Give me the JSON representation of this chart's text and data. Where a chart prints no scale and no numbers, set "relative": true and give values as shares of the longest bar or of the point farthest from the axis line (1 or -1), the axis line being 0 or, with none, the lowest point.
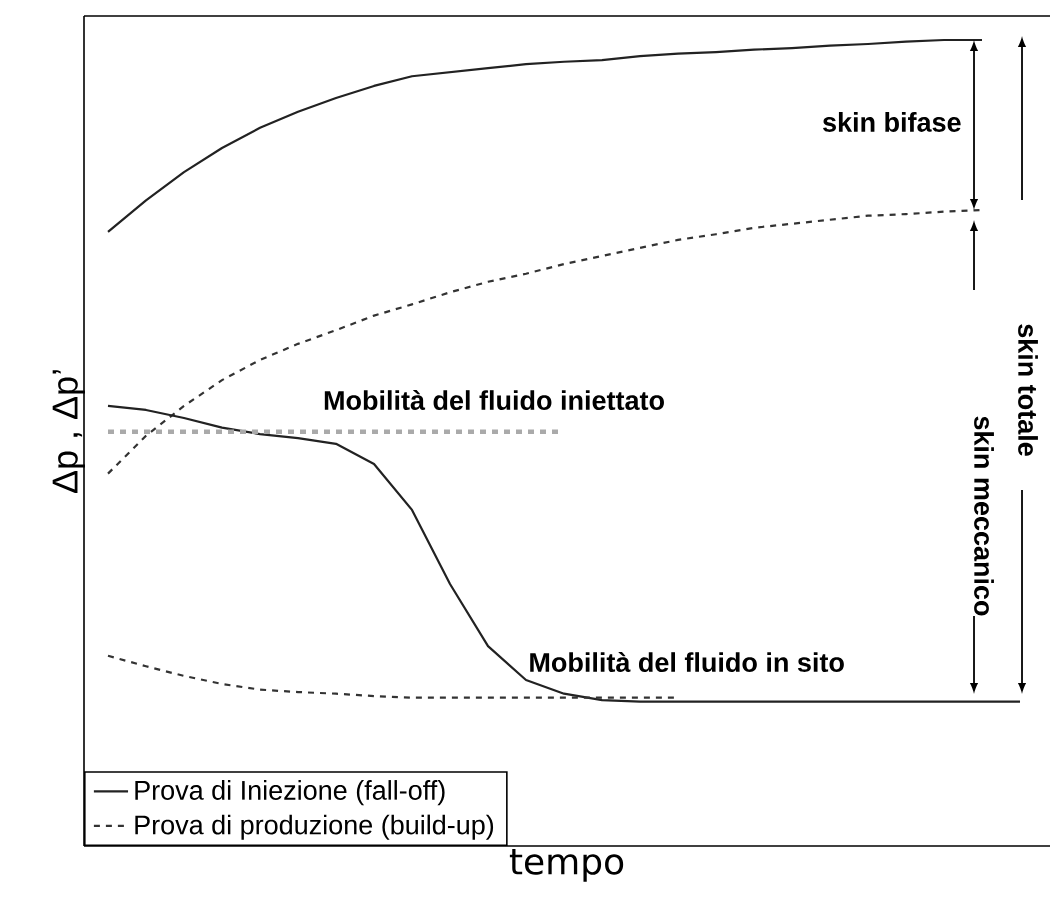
{
  "chart_data": {
    "type": "line",
    "relative": true,
    "xlabel": "tempo",
    "ylabel": "Δp , Δp’",
    "legend": "bottom left",
    "marker": "none",
    "categories": [
      null,
      null,
      null,
      null,
      null,
      null,
      null,
      null,
      null,
      null,
      null,
      null,
      null,
      null,
      null,
      null,
      null,
      null,
      null,
      null,
      null,
      null,
      null,
      null,
      null
    ],
    "series": [
      {
        "name": "Prova di Iniezione (fall-off)",
        "color": "#222222",
        "line_style": "solid",
        "values": [
          0.762,
          0.801,
          0.836,
          0.866,
          0.891,
          0.911,
          0.928,
          0.943,
          0.955,
          0.96,
          0.965,
          0.97,
          0.973,
          0.975,
          0.98,
          0.983,
          0.985,
          0.988,
          0.99,
          0.993,
          0.995,
          0.998,
          1,
          1,
          null
        ]
      },
      {
        "name": "Prova di produzione (build-up)",
        "color": "#333333",
        "line_style": "dashed",
        "values": [
          0.462,
          0.509,
          0.546,
          0.578,
          0.603,
          0.623,
          0.64,
          0.658,
          0.672,
          0.687,
          0.7,
          0.71,
          0.722,
          0.732,
          0.742,
          0.752,
          0.759,
          0.767,
          0.772,
          0.777,
          0.782,
          0.784,
          0.787,
          0.789,
          null
        ]
      },
      {
        "color": "#222222",
        "line_style": "solid",
        "values": [
          0.546,
          0.541,
          0.531,
          0.519,
          0.511,
          0.506,
          0.499,
          0.474,
          0.417,
          0.325,
          0.248,
          0.206,
          0.189,
          0.181,
          0.179,
          0.179,
          0.179,
          0.179,
          0.179,
          0.179,
          0.179,
          0.179,
          0.179,
          0.179,
          0.179
        ]
      },
      {
        "color": "#333333",
        "line_style": "dashed",
        "values": [
          0.236,
          0.223,
          0.211,
          0.201,
          0.194,
          0.191,
          0.189,
          0.186,
          0.184,
          0.184,
          0.184,
          0.184,
          0.184,
          0.184,
          0.184,
          0.184,
          null,
          null,
          null,
          null,
          null,
          null,
          null,
          null,
          null
        ]
      },
      {
        "color": "#aaaaaa",
        "line_style": "dashed",
        "values": [
          0.514,
          0.514,
          0.514,
          0.514,
          0.514,
          0.514,
          0.514,
          0.514,
          0.514,
          0.514,
          0.514,
          0.514,
          0.514,
          null,
          null,
          null,
          null,
          null,
          null,
          null,
          null,
          null,
          null,
          null,
          null
        ]
      }
    ],
    "annotations": [
      "skin bifase",
      "skin totale",
      "skin meccanico",
      "Mobilità del fluido iniettato",
      "Mobilità del fluido in sito"
    ]
  }
}
